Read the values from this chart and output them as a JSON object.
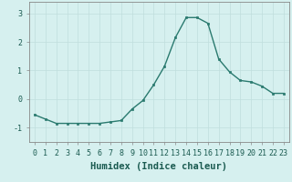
{
  "x": [
    0,
    1,
    2,
    3,
    4,
    5,
    6,
    7,
    8,
    9,
    10,
    11,
    12,
    13,
    14,
    15,
    16,
    17,
    18,
    19,
    20,
    21,
    22,
    23
  ],
  "y": [
    -0.55,
    -0.7,
    -0.85,
    -0.85,
    -0.85,
    -0.85,
    -0.85,
    -0.8,
    -0.75,
    -0.35,
    -0.05,
    0.5,
    1.15,
    2.15,
    2.85,
    2.85,
    2.65,
    1.4,
    0.95,
    0.65,
    0.6,
    0.45,
    0.2,
    0.2
  ],
  "line_color": "#2a7a6f",
  "marker": "s",
  "marker_size": 2,
  "background_color": "#d6f0ef",
  "grid_color": "#c0dedd",
  "xlabel": "Humidex (Indice chaleur)",
  "xlabel_fontsize": 7.5,
  "ylim": [
    -1.5,
    3.4
  ],
  "yticks": [
    -1,
    0,
    1,
    2,
    3
  ],
  "xlim": [
    -0.5,
    23.5
  ],
  "xticks": [
    0,
    1,
    2,
    3,
    4,
    5,
    6,
    7,
    8,
    9,
    10,
    11,
    12,
    13,
    14,
    15,
    16,
    17,
    18,
    19,
    20,
    21,
    22,
    23
  ],
  "xtick_labels": [
    "0",
    "1",
    "2",
    "3",
    "4",
    "5",
    "6",
    "7",
    "8",
    "9",
    "10",
    "11",
    "12",
    "13",
    "14",
    "15",
    "16",
    "17",
    "18",
    "19",
    "20",
    "21",
    "22",
    "23"
  ],
  "tick_fontsize": 6,
  "line_width": 1.0,
  "spine_color": "#888888"
}
